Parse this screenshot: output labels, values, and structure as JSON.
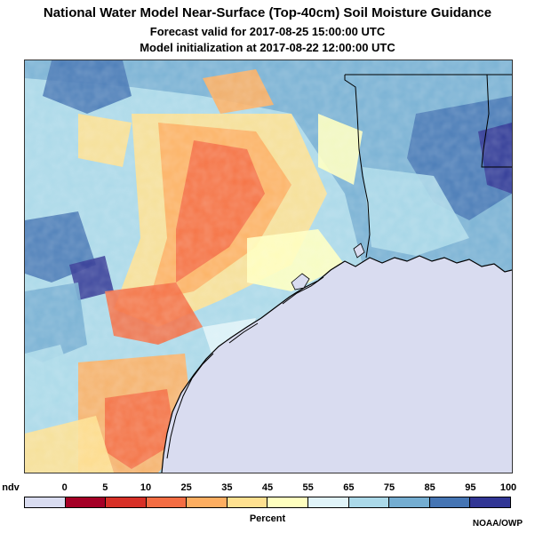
{
  "title": {
    "line1": "National Water Model Near-Surface (Top-40cm) Soil Moisture Guidance",
    "line2": "Forecast valid for 2017-08-25 15:00:00 UTC",
    "line3": "Model initialization at 2017-08-22 12:00:00 UTC"
  },
  "legend": {
    "ticks": [
      "ndv",
      "0",
      "5",
      "10",
      "25",
      "35",
      "45",
      "55",
      "65",
      "75",
      "85",
      "95",
      "100"
    ],
    "colors": [
      "#d9dcf0",
      "#a50026",
      "#d73027",
      "#f46d43",
      "#fdae61",
      "#fee090",
      "#ffffbf",
      "#e0f3f8",
      "#abd9e9",
      "#74add1",
      "#4575b4",
      "#313695"
    ],
    "units": "Percent"
  },
  "credit": "NOAA/OWP",
  "map": {
    "water_color": "#d9dcf0",
    "boundary_color": "#000000"
  }
}
